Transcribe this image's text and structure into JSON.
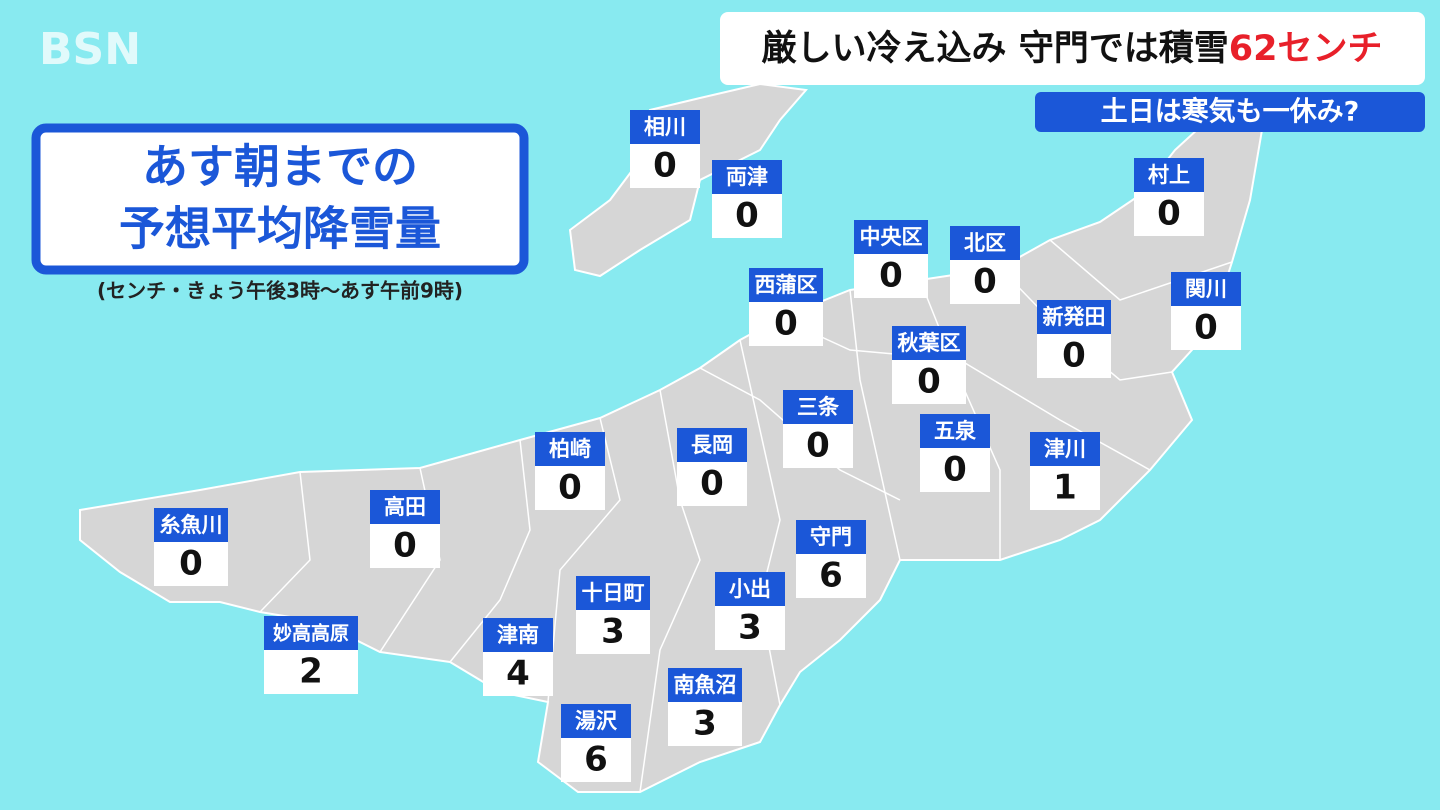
{
  "logo": "BSN",
  "headline": {
    "main": "厳しい冷え込み 守門では積雪",
    "highlight": "62センチ"
  },
  "subheadline": "土日は寒気も一休み?",
  "panel": {
    "title_lines": [
      "あす朝までの",
      "予想平均降雪量"
    ],
    "note": "(センチ・きょう午後3時～あす午前9時)"
  },
  "locations": [
    {
      "name": "相川",
      "value": 0
    },
    {
      "name": "両津",
      "value": 0
    },
    {
      "name": "村上",
      "value": 0
    },
    {
      "name": "中央区",
      "value": 0
    },
    {
      "name": "北区",
      "value": 0
    },
    {
      "name": "西蒲区",
      "value": 0
    },
    {
      "name": "新発田",
      "value": 0
    },
    {
      "name": "関川",
      "value": 0
    },
    {
      "name": "秋葉区",
      "value": 0
    },
    {
      "name": "三条",
      "value": 0
    },
    {
      "name": "五泉",
      "value": 0
    },
    {
      "name": "津川",
      "value": 1
    },
    {
      "name": "柏崎",
      "value": 0
    },
    {
      "name": "長岡",
      "value": 0
    },
    {
      "name": "高田",
      "value": 0
    },
    {
      "name": "糸魚川",
      "value": 0
    },
    {
      "name": "守門",
      "value": 6
    },
    {
      "name": "十日町",
      "value": 3
    },
    {
      "name": "小出",
      "value": 3
    },
    {
      "name": "妙高高原",
      "value": 2
    },
    {
      "name": "津南",
      "value": 4
    },
    {
      "name": "南魚沼",
      "value": 3
    },
    {
      "name": "湯沢",
      "value": 6
    }
  ]
}
